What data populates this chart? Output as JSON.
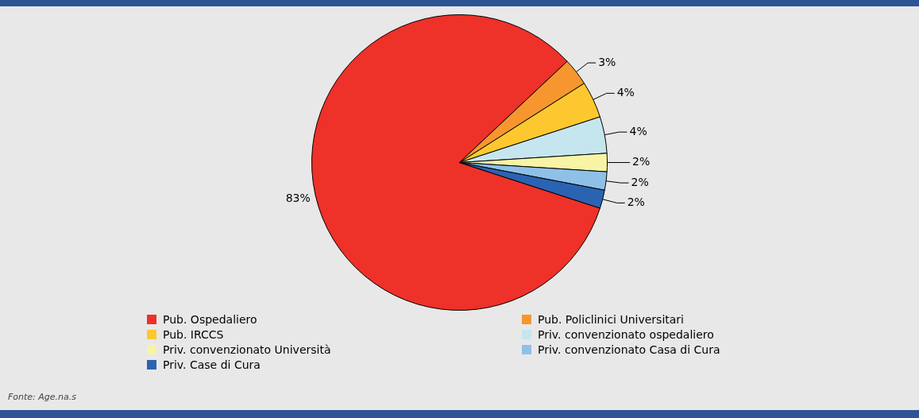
{
  "chart_data": {
    "type": "pie",
    "categories": [
      "Pub. Ospedaliero",
      "Pub. Policlinici Universitari",
      "Pub. IRCCS",
      "Priv. convenzionato ospedaliero",
      "Priv. convenzionato Università",
      "Priv. convenzionato Casa di Cura",
      "Priv. Case di Cura"
    ],
    "values": [
      83,
      3,
      4,
      4,
      2,
      2,
      2
    ],
    "colors": [
      "#ee3129",
      "#f7962f",
      "#fdc82f",
      "#c5e6ee",
      "#f7f4a5",
      "#8fc0e8",
      "#2b63b3"
    ],
    "value_labels": [
      "83%",
      "3%",
      "4%",
      "4%",
      "2%",
      "2%",
      "2%"
    ],
    "legend": "bottom",
    "annotations": [
      "Fonte: Age.na.s"
    ]
  }
}
